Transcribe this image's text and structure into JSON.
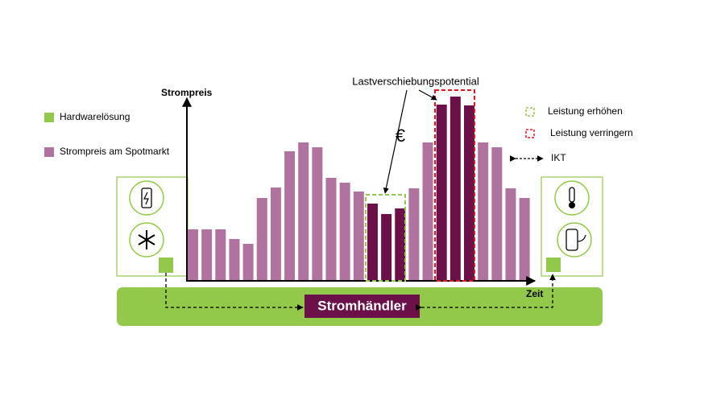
{
  "chart_data": {
    "type": "bar",
    "y_label": "Strompreis",
    "x_label": "Zeit",
    "values": [
      64,
      64,
      64,
      52,
      46,
      103,
      116,
      161,
      172,
      166,
      128,
      122,
      111,
      96,
      83,
      90,
      115,
      172,
      219,
      229,
      218,
      172,
      166,
      115,
      103
    ],
    "colors": [
      "#b0729f",
      "#b0729f",
      "#b0729f",
      "#b0729f",
      "#b0729f",
      "#b0729f",
      "#b0729f",
      "#b0729f",
      "#b0729f",
      "#b0729f",
      "#b0729f",
      "#b0729f",
      "#b0729f",
      "#6b1048",
      "#6b1048",
      "#6b1048",
      "#b0729f",
      "#b0729f",
      "#6b1048",
      "#6b1048",
      "#6b1048",
      "#b0729f",
      "#b0729f",
      "#b0729f",
      "#b0729f"
    ],
    "ylim": [
      0,
      229
    ]
  },
  "legend": {
    "hardware": "Hardwarelösung",
    "spot": "Strompreis am Spotmarkt",
    "increase": "Leistung erhöhen",
    "decrease": "Leistung verringern",
    "ikt": "IKT"
  },
  "annotation": "Lastverschiebungspotential",
  "currency": "€",
  "trader": "Stromhändler"
}
